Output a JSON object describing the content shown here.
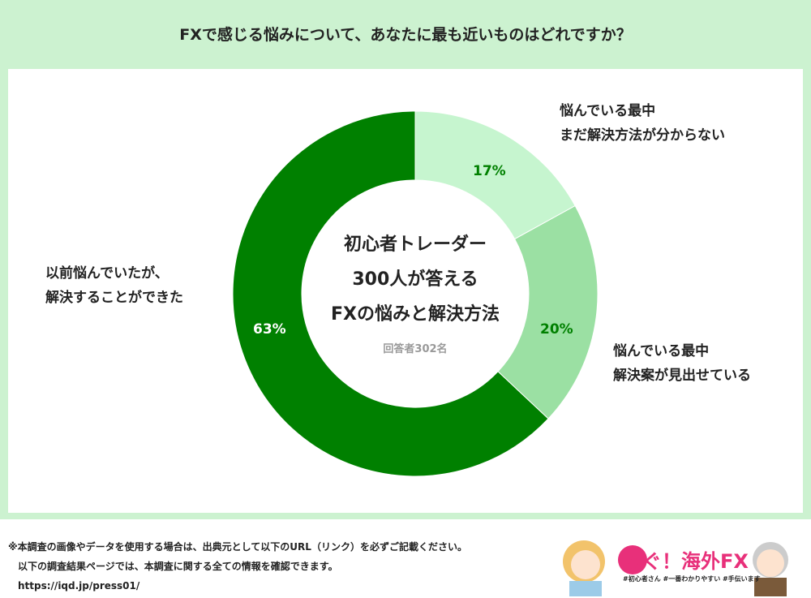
{
  "header": {
    "title": "FXで感じる悩みについて、あなたに最も近いものはどれですか？"
  },
  "chart_data": {
    "type": "pie",
    "donut": true,
    "center_title": [
      "初心者トレーダー",
      "300人が答える",
      "FXの悩みと解決方法"
    ],
    "center_note": "回答者302名",
    "slices": [
      {
        "label": [
          "悩んでいる最中",
          "まだ解決方法が分からない"
        ],
        "value": 17,
        "value_label": "17%",
        "color": "#c6f5cf"
      },
      {
        "label": [
          "悩んでいる最中",
          "解決案が見出せている"
        ],
        "value": 20,
        "value_label": "20%",
        "color": "#9be0a3"
      },
      {
        "label": [
          "以前悩んでいたが、",
          "解決することができた"
        ],
        "value": 63,
        "value_label": "63%",
        "color": "#008000"
      }
    ]
  },
  "footer": {
    "lines": [
      "※本調査の画像やデータを使用する場合は、出典元として以下のURL（リンク）を必ずご記載ください。",
      "以下の調査結果ページでは、本調査に関する全ての情報を確認できます。",
      "https://iqd.jp/press01/"
    ],
    "logo_text": "稼ぐ！海外FX",
    "logo_tags": "#初心者さん #一番わかりやすい #手伝います"
  }
}
